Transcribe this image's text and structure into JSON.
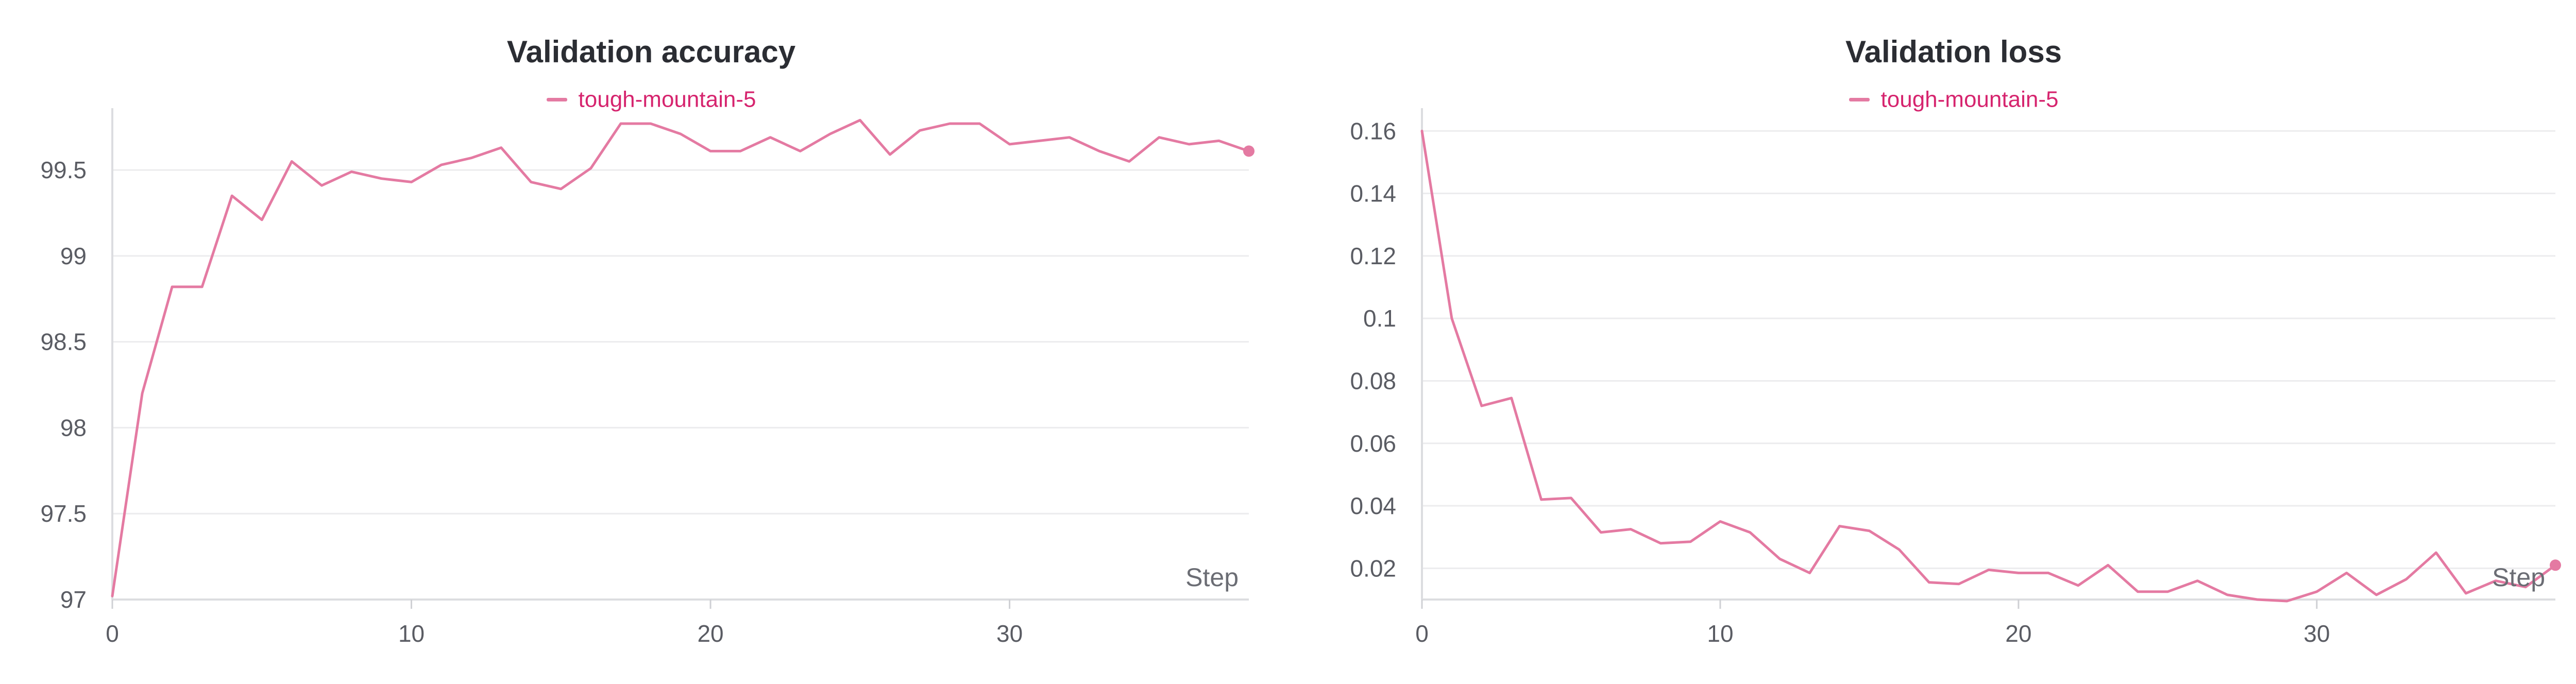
{
  "chart_data": [
    {
      "type": "line",
      "title": "Validation accuracy",
      "xlabel": "Step",
      "ylabel": "",
      "xlim": [
        0,
        38
      ],
      "ylim": [
        97,
        99.8
      ],
      "xticks": [
        0,
        10,
        20,
        30
      ],
      "yticks": [
        97,
        97.5,
        98,
        98.5,
        99,
        99.5
      ],
      "ytick_labels": [
        "97",
        "97.5",
        "98",
        "98.5",
        "99",
        "99.5"
      ],
      "grid": true,
      "legend_position": "top-center",
      "series": [
        {
          "name": "tough-mountain-5",
          "color": "#e47aa2",
          "x": [
            0,
            1,
            2,
            3,
            4,
            5,
            6,
            7,
            8,
            9,
            10,
            11,
            12,
            13,
            14,
            15,
            16,
            17,
            18,
            19,
            20,
            21,
            22,
            23,
            24,
            25,
            26,
            27,
            28,
            29,
            30,
            31,
            32,
            33,
            34,
            35,
            36,
            37,
            38
          ],
          "y": [
            97.02,
            98.2,
            98.82,
            98.82,
            99.35,
            99.21,
            99.55,
            99.41,
            99.49,
            99.45,
            99.43,
            99.53,
            99.57,
            99.63,
            99.43,
            99.39,
            99.51,
            99.77,
            99.77,
            99.71,
            99.61,
            99.61,
            99.69,
            99.61,
            99.71,
            99.79,
            99.59,
            99.73,
            99.77,
            99.77,
            99.65,
            99.67,
            99.69,
            99.61,
            99.55,
            99.69,
            99.65,
            99.67,
            99.61
          ]
        }
      ]
    },
    {
      "type": "line",
      "title": "Validation loss",
      "xlabel": "Step",
      "ylabel": "",
      "xlim": [
        0,
        38
      ],
      "ylim": [
        0.01,
        0.164
      ],
      "xticks": [
        0,
        10,
        20,
        30
      ],
      "yticks": [
        0.02,
        0.04,
        0.06,
        0.08,
        0.1,
        0.12,
        0.14,
        0.16
      ],
      "ytick_labels": [
        "0.02",
        "0.04",
        "0.06",
        "0.08",
        "0.1",
        "0.12",
        "0.14",
        "0.16"
      ],
      "grid": true,
      "legend_position": "top-center",
      "series": [
        {
          "name": "tough-mountain-5",
          "color": "#e47aa2",
          "x": [
            0,
            1,
            2,
            3,
            4,
            5,
            6,
            7,
            8,
            9,
            10,
            11,
            12,
            13,
            14,
            15,
            16,
            17,
            18,
            19,
            20,
            21,
            22,
            23,
            24,
            25,
            26,
            27,
            28,
            29,
            30,
            31,
            32,
            33,
            34,
            35,
            36,
            37,
            38
          ],
          "y": [
            0.16,
            0.1,
            0.072,
            0.0745,
            0.042,
            0.0425,
            0.0315,
            0.0325,
            0.028,
            0.0285,
            0.035,
            0.0315,
            0.023,
            0.0185,
            0.0335,
            0.032,
            0.026,
            0.0155,
            0.015,
            0.0195,
            0.0185,
            0.0185,
            0.0145,
            0.021,
            0.0125,
            0.0125,
            0.016,
            0.0115,
            0.01,
            0.0095,
            0.0125,
            0.0185,
            0.0115,
            0.0165,
            0.025,
            0.012,
            0.016,
            0.014,
            0.021
          ]
        }
      ]
    }
  ]
}
